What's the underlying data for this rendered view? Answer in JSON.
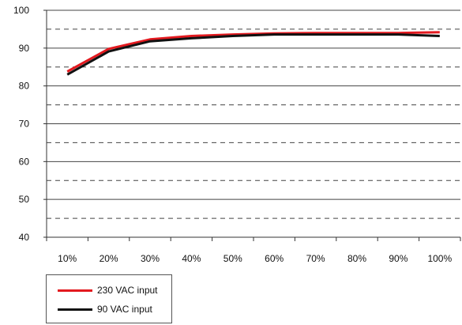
{
  "chart_data": {
    "type": "line",
    "categories": [
      "10%",
      "20%",
      "30%",
      "40%",
      "50%",
      "60%",
      "70%",
      "80%",
      "90%",
      "100%"
    ],
    "series": [
      {
        "name": "230 VAC input",
        "color": "#e3191f",
        "values": [
          83.8,
          89.8,
          92.3,
          93.2,
          93.6,
          93.9,
          94.0,
          94.0,
          94.0,
          94.2
        ]
      },
      {
        "name": "90 VAC input",
        "color": "#111111",
        "values": [
          83.0,
          89.1,
          91.8,
          92.6,
          93.2,
          93.6,
          93.6,
          93.6,
          93.6,
          93.2
        ]
      }
    ],
    "ylim": [
      40,
      100
    ],
    "yticks": [
      "40",
      "50",
      "60",
      "70",
      "80",
      "90",
      "100"
    ],
    "grid": "solid at major ticks, dashed at 45/55/65/75/85/95",
    "legend_placement": "bottom-left"
  }
}
